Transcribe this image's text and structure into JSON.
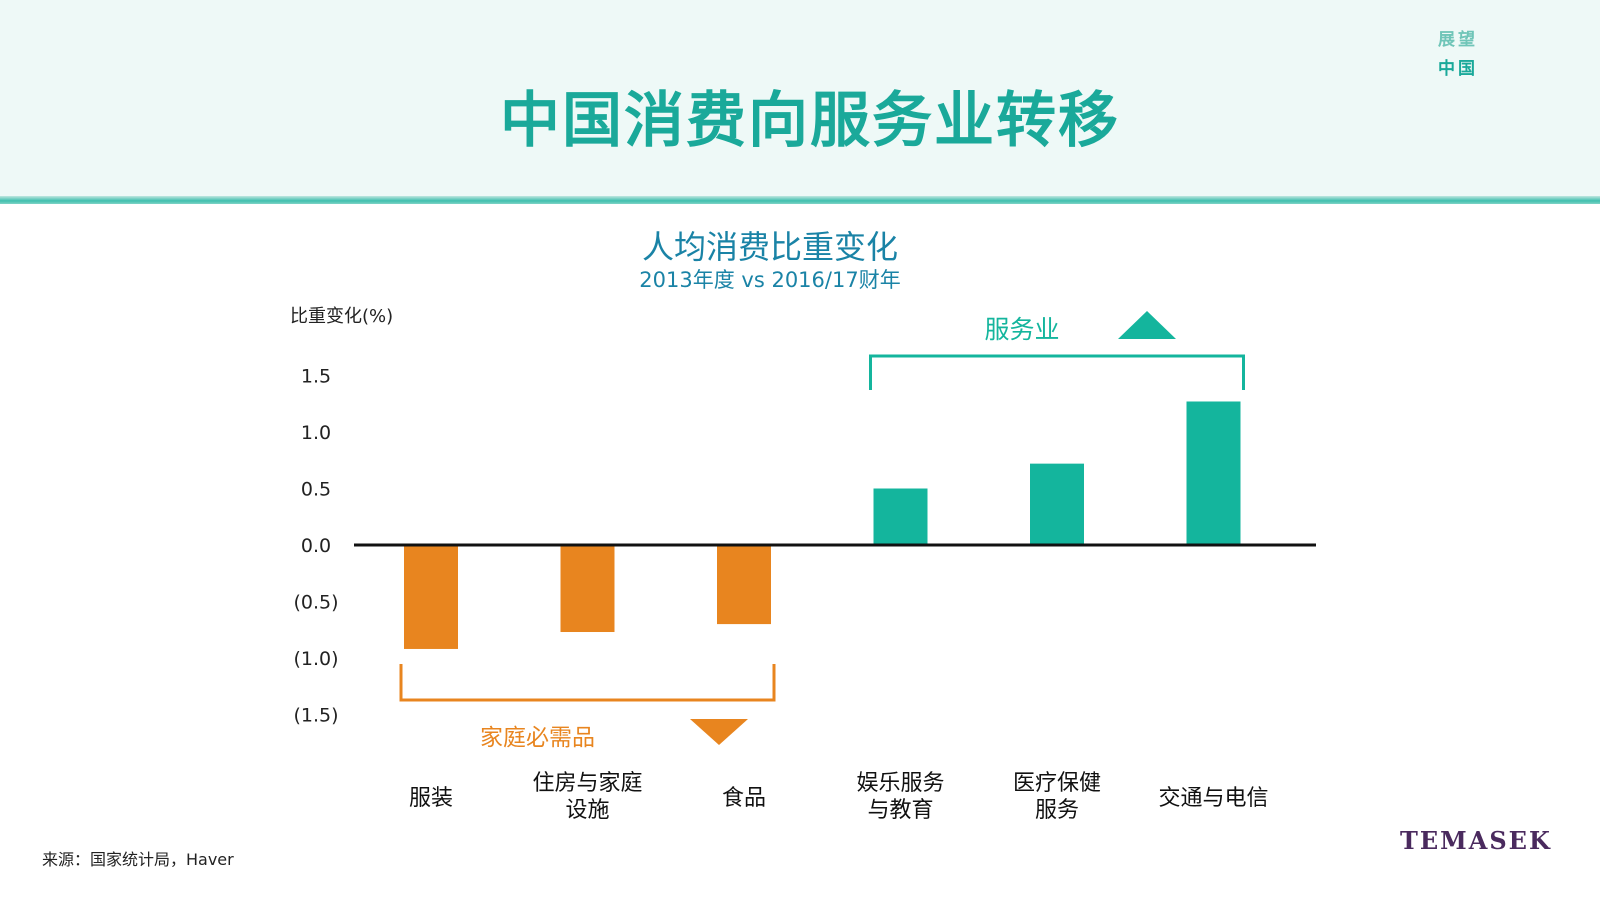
{
  "header": {
    "title": "中国消费向服务业转移",
    "badge_line1": "展望",
    "badge_line2": "中国"
  },
  "colors": {
    "teal": "#14b59d",
    "orange": "#e8851f",
    "title_blue": "#1a83a6"
  },
  "chart_data": {
    "type": "bar",
    "title": "人均消费比重变化",
    "subtitle": "2013年度 vs 2016/17财年",
    "ylabel": "比重变化(%)",
    "ylim": [
      -1.5,
      1.5
    ],
    "yticks": [
      1.5,
      1.0,
      0.5,
      0.0,
      -0.5,
      -1.0,
      -1.5
    ],
    "ytick_labels": [
      "1.5",
      "1.0",
      "0.5",
      "0.0",
      "(0.5)",
      "(1.0)",
      "(1.5)"
    ],
    "categories": [
      [
        "服装"
      ],
      [
        "住房与家庭",
        "设施"
      ],
      [
        "食品"
      ],
      [
        "娱乐服务",
        "与教育"
      ],
      [
        "医疗保健",
        "服务"
      ],
      [
        "交通与电信"
      ]
    ],
    "values": [
      -0.92,
      -0.77,
      -0.7,
      0.5,
      0.72,
      1.27
    ],
    "groups": [
      {
        "label": "家庭必需品",
        "from": 0,
        "to": 2,
        "direction": "down",
        "color": "#e8851f"
      },
      {
        "label": "服务业",
        "from": 3,
        "to": 5,
        "direction": "up",
        "color": "#14b59d"
      }
    ],
    "grid": false,
    "legend": "none"
  },
  "footer": {
    "source": "来源：国家统计局，Haver",
    "brand": "TEMASEK"
  }
}
